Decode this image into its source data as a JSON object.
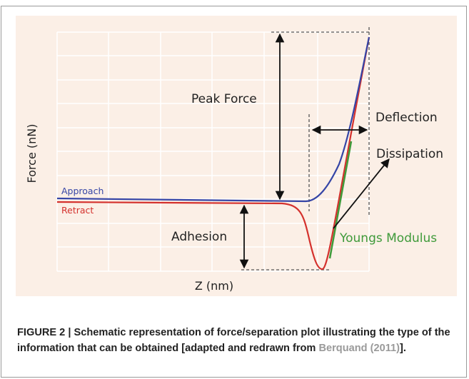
{
  "figure": {
    "labels": {
      "y_axis": "Force (nN)",
      "x_axis": "Z (nm)",
      "approach": "Approach",
      "retract": "Retract",
      "peak_force": "Peak Force",
      "deflection": "Deflection",
      "dissipation": "Dissipation",
      "adhesion": "Adhesion",
      "youngs_modulus": "Youngs Modulus"
    },
    "caption": {
      "text": "FIGURE 2 | Schematic representation of force/separation plot illustrating the type of the information that can be obtained [adapted and redrawn from ",
      "link": "Berquand (2011)",
      "end": "]."
    }
  }
}
